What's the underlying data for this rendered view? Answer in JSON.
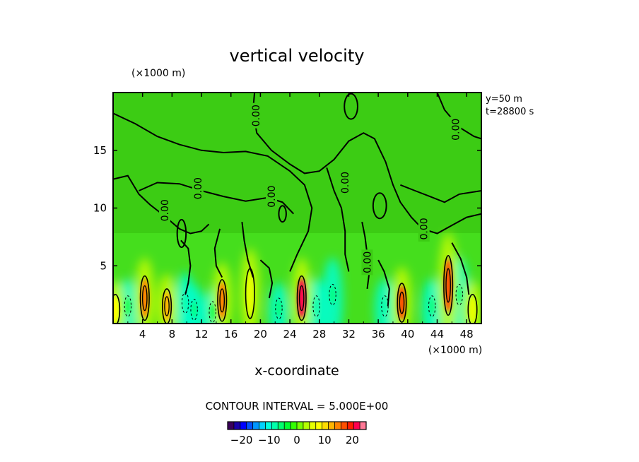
{
  "chart_data": {
    "type": "heatmap",
    "title": "vertical velocity",
    "xlabel": "x-coordinate",
    "x_unit": "(×1000 m)",
    "y_unit": "(×1000 m)",
    "xlim": [
      0,
      50
    ],
    "ylim": [
      0,
      20
    ],
    "x_ticks": [
      4,
      8,
      12,
      16,
      20,
      24,
      28,
      32,
      36,
      40,
      44,
      48
    ],
    "x_tick_labels": [
      "4",
      "8",
      "12",
      "16",
      "20",
      "24",
      "28",
      "32",
      "36",
      "40",
      "44",
      "48"
    ],
    "y_ticks": [
      5,
      10,
      15
    ],
    "y_tick_labels": [
      "5",
      "10",
      "15"
    ],
    "info_lines": [
      "y=50 m",
      "t=28800 s"
    ],
    "contour_interval_text": "CONTOUR INTERVAL = 5.000E+00",
    "contour_zero_label": "0.00",
    "contour_zero_labels_at": [
      [
        19.4,
        18.0
      ],
      [
        46.5,
        16.8
      ],
      [
        11.5,
        11.7
      ],
      [
        7.0,
        9.8
      ],
      [
        21.5,
        11.0
      ],
      [
        31.5,
        12.2
      ],
      [
        34.5,
        5.3
      ],
      [
        42.2,
        8.2
      ]
    ],
    "colorbar": {
      "range": [
        -25,
        25
      ],
      "tick_values": [
        -20,
        -10,
        0,
        10,
        20
      ],
      "tick_labels": [
        "−20",
        "−10",
        "0",
        "10",
        "20"
      ],
      "colors": [
        "#3a005a",
        "#1b00a8",
        "#0000ff",
        "#0050ff",
        "#0096ff",
        "#00d2ff",
        "#00ffe0",
        "#00ffaa",
        "#00ff6e",
        "#00ff32",
        "#32ff00",
        "#78ff00",
        "#b4ff00",
        "#e6ff00",
        "#ffff00",
        "#ffdc00",
        "#ffb400",
        "#ff8200",
        "#ff5000",
        "#ff1e00",
        "#ff0050",
        "#ff7896"
      ]
    },
    "updrafts": [
      {
        "x": 0.3,
        "y": 1.2,
        "w": 9
      },
      {
        "x": 4.3,
        "y": 2.2,
        "w": 14
      },
      {
        "x": 7.3,
        "y": 1.5,
        "w": 12
      },
      {
        "x": 14.8,
        "y": 2.0,
        "w": 14
      },
      {
        "x": 18.6,
        "y": 2.6,
        "w": 6
      },
      {
        "x": 25.6,
        "y": 2.2,
        "w": 22
      },
      {
        "x": 39.2,
        "y": 1.8,
        "w": 18
      },
      {
        "x": 45.5,
        "y": 3.3,
        "w": 16
      },
      {
        "x": 48.8,
        "y": 1.2,
        "w": 5
      }
    ],
    "downdrafts": [
      {
        "x": 2.0,
        "y": 1.5,
        "w": -4
      },
      {
        "x": 9.8,
        "y": 1.8,
        "w": -7
      },
      {
        "x": 11.0,
        "y": 1.2,
        "w": -5
      },
      {
        "x": 13.5,
        "y": 1.0,
        "w": -4
      },
      {
        "x": 22.5,
        "y": 1.3,
        "w": -5
      },
      {
        "x": 27.6,
        "y": 1.5,
        "w": -9
      },
      {
        "x": 29.8,
        "y": 2.5,
        "w": -5
      },
      {
        "x": 36.9,
        "y": 1.5,
        "w": -7
      },
      {
        "x": 43.3,
        "y": 1.5,
        "w": -5
      },
      {
        "x": 47.0,
        "y": 2.5,
        "w": -5
      }
    ]
  }
}
